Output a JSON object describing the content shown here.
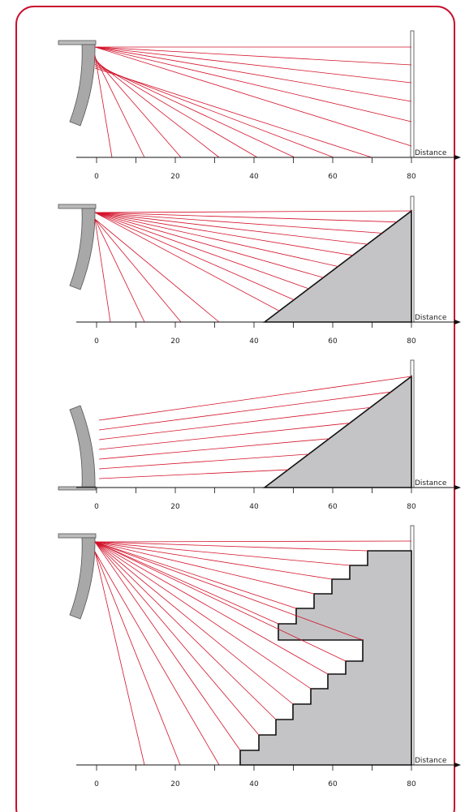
{
  "panels": [
    {
      "axis_label": "Distance",
      "tick_labels": [
        "0",
        "20",
        "40",
        "60",
        "80"
      ]
    },
    {
      "axis_label": "Distance",
      "tick_labels": [
        "0",
        "20",
        "40",
        "60",
        "80"
      ]
    },
    {
      "axis_label": "Distance",
      "tick_labels": [
        "0",
        "20",
        "40",
        "60",
        "80"
      ]
    },
    {
      "axis_label": "Distance",
      "tick_labels": [
        "0",
        "20",
        "40",
        "60",
        "80"
      ]
    }
  ]
}
